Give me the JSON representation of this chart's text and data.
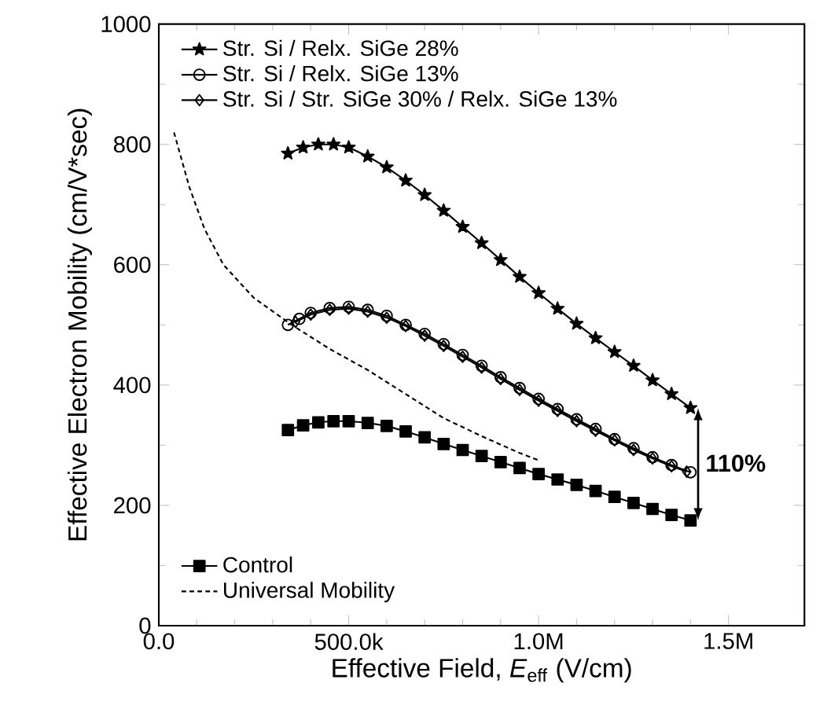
{
  "chart_data": {
    "type": "line",
    "xlabel": "Effective Field, *E*$_{eff}$ (V/cm)",
    "ylabel": "Effective Electron Mobility (cm/V*sec)",
    "xlim": [
      0,
      1700000
    ],
    "ylim": [
      0,
      1000
    ],
    "xticks": [
      {
        "value": 0,
        "label": "0.0"
      },
      {
        "value": 500000,
        "label": "500.0k"
      },
      {
        "value": 1000000,
        "label": "1.0M"
      },
      {
        "value": 1500000,
        "label": "1.5M"
      }
    ],
    "yticks": [
      0,
      200,
      400,
      600,
      800,
      1000
    ],
    "grid": false,
    "legend": "top left",
    "line_style": "solid",
    "annotations": [
      {
        "text": "110%",
        "x": 1420000,
        "y": 270
      }
    ],
    "series": [
      {
        "name": "Str. Si / Relx. SiGe 28%",
        "color": "#000000",
        "marker": "star",
        "x": [
          340000,
          380000,
          420000,
          460000,
          500000,
          550000,
          600000,
          650000,
          700000,
          750000,
          800000,
          850000,
          900000,
          950000,
          1000000,
          1050000,
          1100000,
          1150000,
          1200000,
          1250000,
          1300000,
          1350000,
          1400000
        ],
        "values": [
          785,
          795,
          800,
          800,
          795,
          780,
          762,
          740,
          716,
          690,
          663,
          636,
          608,
          580,
          553,
          527,
          502,
          478,
          455,
          432,
          408,
          385,
          362
        ]
      },
      {
        "name": "Str. Si / Relx. SiGe 13%",
        "color": "#000000",
        "marker": "circle",
        "x": [
          340000,
          370000,
          400000,
          450000,
          500000,
          550000,
          600000,
          650000,
          700000,
          750000,
          800000,
          850000,
          900000,
          950000,
          1000000,
          1050000,
          1100000,
          1150000,
          1200000,
          1250000,
          1300000,
          1350000,
          1400000
        ],
        "values": [
          500,
          510,
          520,
          528,
          530,
          525,
          515,
          500,
          485,
          468,
          450,
          432,
          413,
          395,
          377,
          360,
          343,
          327,
          310,
          295,
          280,
          267,
          255
        ]
      },
      {
        "name": "Str. Si / Str. SiGe 30% / Relx. SiGe 13%",
        "color": "#000000",
        "marker": "diamond",
        "x": [
          360000,
          400000,
          450000,
          500000,
          550000,
          600000,
          650000,
          700000,
          750000,
          800000,
          850000,
          900000,
          950000,
          1000000,
          1050000,
          1100000,
          1150000,
          1200000,
          1250000,
          1300000,
          1350000,
          1390000
        ],
        "values": [
          505,
          517,
          525,
          527,
          522,
          512,
          498,
          482,
          465,
          447,
          429,
          410,
          392,
          374,
          357,
          340,
          324,
          308,
          292,
          278,
          265,
          256
        ]
      },
      {
        "name": "Control",
        "color": "#000000",
        "marker": "square",
        "x": [
          340000,
          380000,
          420000,
          460000,
          500000,
          550000,
          600000,
          650000,
          700000,
          750000,
          800000,
          850000,
          900000,
          950000,
          1000000,
          1050000,
          1100000,
          1150000,
          1200000,
          1250000,
          1300000,
          1350000,
          1400000
        ],
        "values": [
          325,
          333,
          338,
          340,
          340,
          337,
          332,
          323,
          313,
          302,
          292,
          282,
          272,
          262,
          252,
          243,
          234,
          224,
          214,
          204,
          194,
          184,
          175
        ]
      },
      {
        "name": "Universal Mobility",
        "color": "#000000",
        "type": "line",
        "marker": "none",
        "line_style": "dashed",
        "x": [
          40000,
          80000,
          120000,
          170000,
          250000,
          350000,
          450000,
          550000,
          650000,
          750000,
          850000,
          950000,
          1000000
        ],
        "values": [
          820,
          730,
          660,
          600,
          545,
          500,
          460,
          425,
          385,
          345,
          315,
          287,
          275
        ]
      }
    ]
  }
}
